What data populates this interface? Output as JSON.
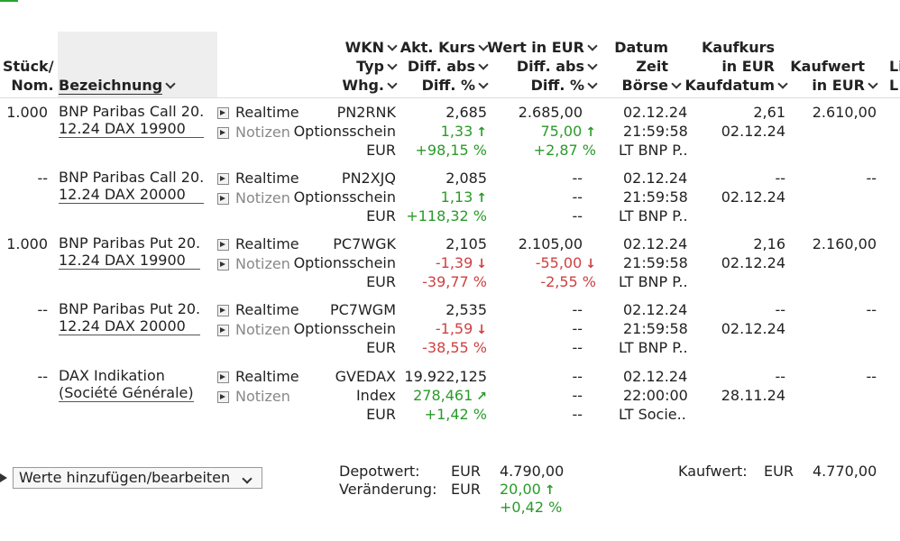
{
  "headers": {
    "stueck": [
      "Stück/",
      "Nom."
    ],
    "bezeichnung": "Bezeichnung",
    "wkn": [
      "WKN",
      "Typ",
      "Whg."
    ],
    "kurs": [
      "Akt. Kurs",
      "Diff. abs",
      "Diff. %"
    ],
    "wert": [
      "Wert in EUR",
      "Diff. abs",
      "Diff. %"
    ],
    "datum": [
      "Datum",
      "Zeit",
      "Börse"
    ],
    "kaufkurs": [
      "Kaufkurs",
      "in EUR",
      "Kaufdatum"
    ],
    "kaufwert": [
      "Kaufwert",
      "in EUR"
    ],
    "cut": [
      "Li",
      "L"
    ]
  },
  "buttons": {
    "realtime": "Realtime",
    "notizen": "Notizen"
  },
  "rows": [
    {
      "qty": "1.000",
      "name": [
        "BNP Paribas Call 20.",
        "12.24 DAX 19900"
      ],
      "wkn": "PN2RNK",
      "typ": "Optionsschein",
      "whg": "EUR",
      "kurs": "2,685",
      "diff_abs": "1,33",
      "diff_pct": "+98,15 %",
      "dir": "up",
      "wert": "2.685,00",
      "wert_abs": "75,00",
      "wert_pct": "+2,87 %",
      "datum": "02.12.24",
      "zeit": "21:59:58",
      "boerse": "LT BNP P..",
      "kaufkurs": "2,61",
      "kaufdatum": "02.12.24",
      "kaufwert": "2.610,00"
    },
    {
      "qty": "--",
      "name": [
        "BNP Paribas Call 20.",
        "12.24 DAX 20000"
      ],
      "wkn": "PN2XJQ",
      "typ": "Optionsschein",
      "whg": "EUR",
      "kurs": "2,085",
      "diff_abs": "1,13",
      "diff_pct": "+118,32 %",
      "dir": "up",
      "wert": "--",
      "wert_abs": "--",
      "wert_pct": "--",
      "datum": "02.12.24",
      "zeit": "21:59:58",
      "boerse": "LT BNP P..",
      "kaufkurs": "--",
      "kaufdatum": "02.12.24",
      "kaufwert": "--"
    },
    {
      "qty": "1.000",
      "name": [
        "BNP Paribas Put 20.",
        "12.24 DAX 19900"
      ],
      "wkn": "PC7WGK",
      "typ": "Optionsschein",
      "whg": "EUR",
      "kurs": "2,105",
      "diff_abs": "-1,39",
      "diff_pct": "-39,77 %",
      "dir": "down",
      "wert": "2.105,00",
      "wert_abs": "-55,00",
      "wert_pct": "-2,55 %",
      "datum": "02.12.24",
      "zeit": "21:59:58",
      "boerse": "LT BNP P..",
      "kaufkurs": "2,16",
      "kaufdatum": "02.12.24",
      "kaufwert": "2.160,00"
    },
    {
      "qty": "--",
      "name": [
        "BNP Paribas Put 20.",
        "12.24 DAX 20000"
      ],
      "wkn": "PC7WGM",
      "typ": "Optionsschein",
      "whg": "EUR",
      "kurs": "2,535",
      "diff_abs": "-1,59",
      "diff_pct": "-38,55 %",
      "dir": "down",
      "wert": "--",
      "wert_abs": "--",
      "wert_pct": "--",
      "datum": "02.12.24",
      "zeit": "21:59:58",
      "boerse": "LT BNP P..",
      "kaufkurs": "--",
      "kaufdatum": "02.12.24",
      "kaufwert": "--"
    },
    {
      "qty": "--",
      "name": [
        "DAX Indikation",
        "(Société Générale)"
      ],
      "wkn": "GVEDAX",
      "typ": "Index",
      "whg": "EUR",
      "kurs": "19.922,125",
      "diff_abs": "278,461",
      "diff_pct": "+1,42 %",
      "dir": "upright",
      "wert": "--",
      "wert_abs": "--",
      "wert_pct": "--",
      "datum": "02.12.24",
      "zeit": "22:00:00",
      "boerse": "LT Socie..",
      "kaufkurs": "--",
      "kaufdatum": "28.11.24",
      "kaufwert": "--"
    }
  ],
  "footer": {
    "select_value": "Werte hinzufügen/bearbeiten",
    "depotwert_label": "Depotwert:",
    "depotwert_cur": "EUR",
    "depotwert_value": "4.790,00",
    "veraenderung_label": "Veränderung:",
    "veraenderung_cur": "EUR",
    "veraenderung_abs": "20,00",
    "veraenderung_pct": "+0,42 %",
    "kaufwert_label": "Kaufwert:",
    "kaufwert_cur": "EUR",
    "kaufwert_value": "4.770,00"
  },
  "colors": {
    "positive": "#2a9a2a",
    "negative": "#d04040",
    "header_bg": "#eeeeee"
  }
}
